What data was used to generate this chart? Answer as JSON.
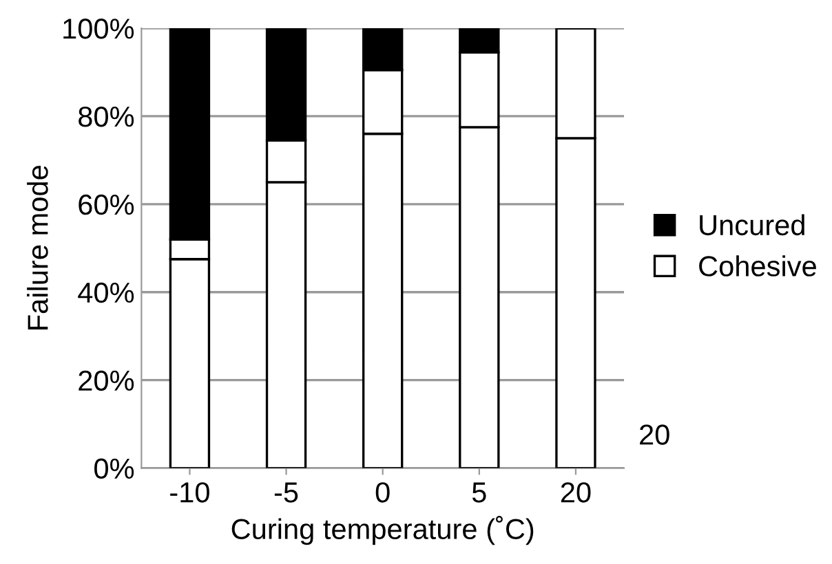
{
  "chart_data": {
    "type": "bar",
    "stacked": true,
    "xlabel": "Curing temperature (˚C)",
    "ylabel": "Failure mode",
    "categories": [
      "-10",
      "-5",
      "0",
      "5",
      "20"
    ],
    "series": [
      {
        "color": "#ffffff",
        "values": [
          47.5,
          65,
          76,
          77.5,
          75
        ]
      },
      {
        "name": "Cohesive",
        "color": "#ffffff",
        "values": [
          4.5,
          9.5,
          14.5,
          17,
          25
        ]
      },
      {
        "name": "Uncured",
        "color": "#000000",
        "values": [
          48,
          25.5,
          9.5,
          5.5,
          0
        ]
      }
    ],
    "ylim": [
      0,
      100
    ],
    "yticks": [
      {
        "value": 0,
        "label": "0%"
      },
      {
        "value": 20,
        "label": "20%"
      },
      {
        "value": 40,
        "label": "40%"
      },
      {
        "value": 60,
        "label": "60%"
      },
      {
        "value": 80,
        "label": "80%"
      },
      {
        "value": 100,
        "label": "100%"
      }
    ],
    "grid": "y",
    "legend": "right",
    "annotations": [
      "20"
    ]
  }
}
